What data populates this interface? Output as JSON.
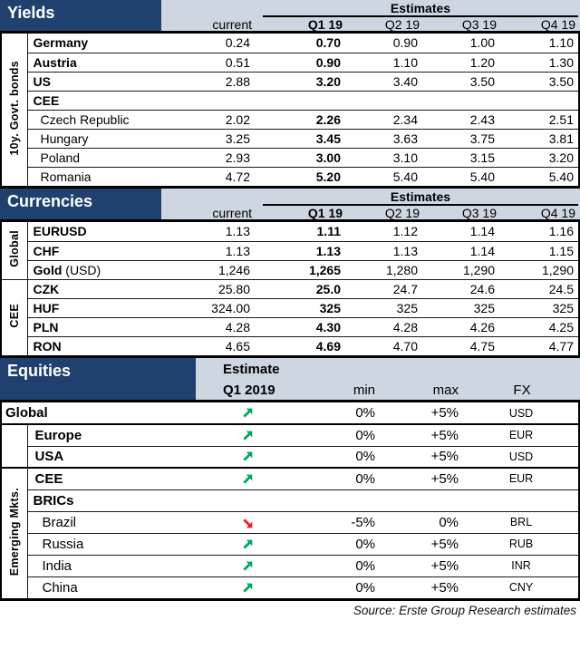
{
  "colors": {
    "header_blue": "#20416F",
    "band_light": "#CED6E2",
    "trend_up_green": "#00A75D",
    "trend_down_red": "#EC1B24",
    "border_black": "#000000"
  },
  "yields": {
    "title": "Yields",
    "estimates_label": "Estimates",
    "current_label": "current",
    "quarter_labels": [
      "Q1 19",
      "Q2 19",
      "Q3 19",
      "Q4 19"
    ],
    "side_groups": [
      {
        "label": "10y. Govt. bonds",
        "span": 8
      }
    ],
    "rows": [
      {
        "label": "Germany",
        "style": "main",
        "values": [
          "0.24",
          "0.70",
          "0.90",
          "1.00",
          "1.10"
        ]
      },
      {
        "label": "Austria",
        "style": "main",
        "values": [
          "0.51",
          "0.90",
          "1.10",
          "1.20",
          "1.30"
        ]
      },
      {
        "label": "US",
        "style": "main",
        "values": [
          "2.88",
          "3.20",
          "3.40",
          "3.50",
          "3.50"
        ]
      },
      {
        "label": "CEE",
        "style": "group",
        "values": []
      },
      {
        "label": "Czech Republic",
        "style": "sub",
        "values": [
          "2.02",
          "2.26",
          "2.34",
          "2.43",
          "2.51"
        ]
      },
      {
        "label": "Hungary",
        "style": "sub",
        "values": [
          "3.25",
          "3.45",
          "3.63",
          "3.75",
          "3.81"
        ]
      },
      {
        "label": "Poland",
        "style": "sub",
        "values": [
          "2.93",
          "3.00",
          "3.10",
          "3.15",
          "3.20"
        ]
      },
      {
        "label": "Romania",
        "style": "sub",
        "values": [
          "4.72",
          "5.20",
          "5.40",
          "5.40",
          "5.40"
        ]
      }
    ]
  },
  "currencies": {
    "title": "Currencies",
    "estimates_label": "Estimates",
    "current_label": "current",
    "quarter_labels": [
      "Q1 19",
      "Q2 19",
      "Q3 19",
      "Q4 19"
    ],
    "side_groups": [
      {
        "label": "Global",
        "span": 3
      },
      {
        "label": "CEE",
        "span": 4
      }
    ],
    "rows": [
      {
        "label": "EURUSD",
        "style": "main",
        "values": [
          "1.13",
          "1.11",
          "1.12",
          "1.14",
          "1.16"
        ]
      },
      {
        "label": "CHF",
        "style": "main",
        "values": [
          "1.13",
          "1.13",
          "1.13",
          "1.14",
          "1.15"
        ]
      },
      {
        "label": "Gold",
        "label_suffix": "(USD)",
        "style": "main",
        "values": [
          "1,246",
          "1,265",
          "1,280",
          "1,290",
          "1,290"
        ]
      },
      {
        "label": "CZK",
        "style": "main",
        "values": [
          "25.80",
          "25.0",
          "24.7",
          "24.6",
          "24.5"
        ]
      },
      {
        "label": "HUF",
        "style": "main",
        "values": [
          "324.00",
          "325",
          "325",
          "325",
          "325"
        ]
      },
      {
        "label": "PLN",
        "style": "main",
        "values": [
          "4.28",
          "4.30",
          "4.28",
          "4.26",
          "4.25"
        ]
      },
      {
        "label": "RON",
        "style": "main",
        "values": [
          "4.65",
          "4.69",
          "4.70",
          "4.75",
          "4.77"
        ]
      }
    ]
  },
  "equities": {
    "title": "Equities",
    "estimate_label": "Estimate",
    "quarter_label": "Q1 2019",
    "min_label": "min",
    "max_label": "max",
    "fx_label": "FX",
    "side_label": "Emerging Mkts.",
    "gutters": [
      {
        "at": 1,
        "label": "",
        "span": 2
      },
      {
        "at": 3,
        "label": "Emerging Mkts.",
        "span": 6
      }
    ],
    "rows": [
      {
        "label": "Global",
        "style": "glob",
        "full_width": true,
        "trend": "up",
        "min": "0%",
        "max": "+5%",
        "fx": "USD"
      },
      {
        "label": "Europe",
        "style": "main",
        "divider": "thick",
        "trend": "up",
        "min": "0%",
        "max": "+5%",
        "fx": "EUR"
      },
      {
        "label": "USA",
        "style": "main",
        "trend": "up",
        "min": "0%",
        "max": "+5%",
        "fx": "USD"
      },
      {
        "label": "CEE",
        "style": "main",
        "divider": "thick",
        "trend": "up",
        "min": "0%",
        "max": "+5%",
        "fx": "EUR"
      },
      {
        "label": "BRICs",
        "style": "group"
      },
      {
        "label": "Brazil",
        "style": "sub",
        "trend": "down",
        "min": "-5%",
        "max": "0%",
        "fx": "BRL"
      },
      {
        "label": "Russia",
        "style": "sub",
        "trend": "up",
        "min": "0%",
        "max": "+5%",
        "fx": "RUB"
      },
      {
        "label": "India",
        "style": "sub",
        "trend": "up",
        "min": "0%",
        "max": "+5%",
        "fx": "INR"
      },
      {
        "label": "China",
        "style": "sub",
        "trend": "up",
        "min": "0%",
        "max": "+5%",
        "fx": "CNY"
      }
    ]
  },
  "footer": {
    "source": "Source: Erste Group Research estimates"
  }
}
